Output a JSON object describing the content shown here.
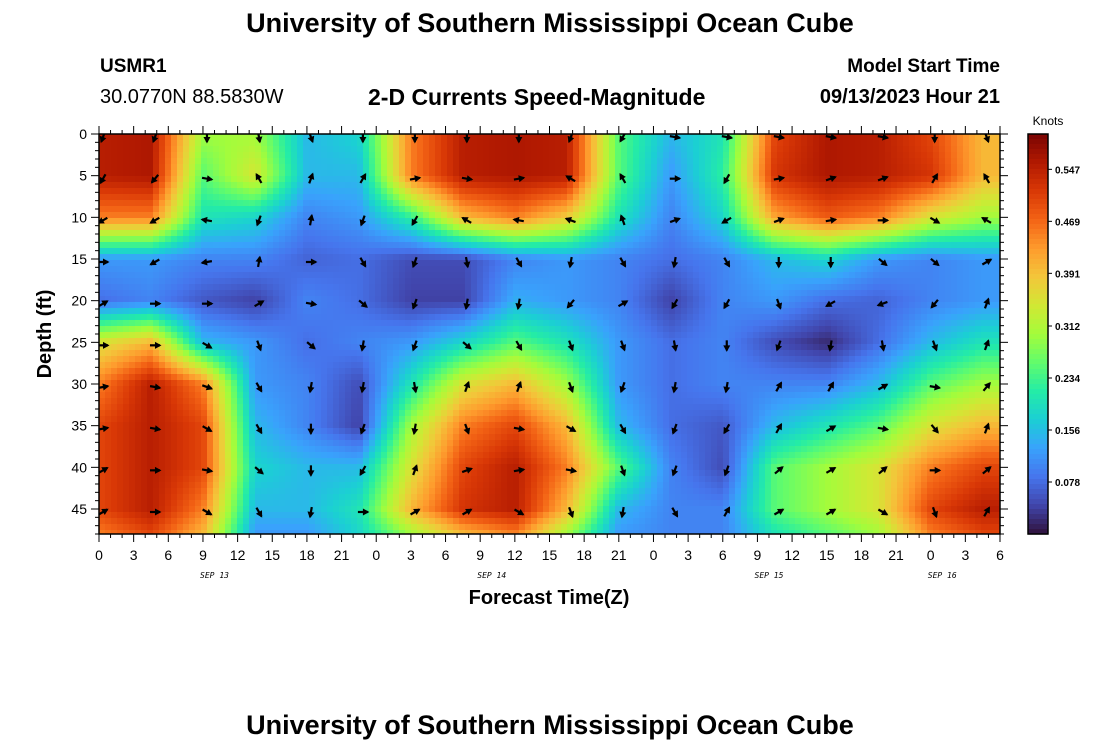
{
  "header": {
    "title": "University of Southern Mississippi Ocean Cube",
    "station": "USMR1",
    "coords": "30.0770N  88.5830W",
    "subtitle": "2-D Currents Speed-Magnitude",
    "model_start_label": "Model Start Time",
    "model_start_value": "09/13/2023 Hour 21"
  },
  "footer": {
    "title": "University of Southern Mississippi Ocean Cube"
  },
  "colors": {
    "scale": [
      "#30123b",
      "#4145ab",
      "#4675ed",
      "#39a2fc",
      "#1bcfd4",
      "#24eca6",
      "#61fc6c",
      "#a4fc3b",
      "#d1e834",
      "#f3c63a",
      "#fe9b2d",
      "#f36315",
      "#d93806",
      "#b11901",
      "#7a0403"
    ]
  },
  "chart_data": {
    "type": "heatmap",
    "title": "2-D Currents Speed-Magnitude",
    "xlabel": "Forecast Time(Z)",
    "ylabel": "Depth (ft)",
    "x_tick_labels": [
      "0",
      "3",
      "6",
      "9",
      "12",
      "15",
      "18",
      "21",
      "0",
      "3",
      "6",
      "9",
      "12",
      "15",
      "18",
      "21",
      "0",
      "3",
      "6",
      "9",
      "12",
      "15",
      "18",
      "21",
      "0",
      "3",
      "6"
    ],
    "x_hours": [
      0,
      3,
      6,
      9,
      12,
      15,
      18,
      21,
      24,
      27,
      30,
      33,
      36,
      39,
      42,
      45,
      48,
      51,
      54,
      57,
      60,
      63,
      66,
      69,
      72,
      75,
      78
    ],
    "xlim": [
      0,
      78
    ],
    "date_labels": [
      {
        "text": "SEP 13",
        "hour": 10
      },
      {
        "text": "SEP 14",
        "hour": 34
      },
      {
        "text": "SEP 15",
        "hour": 58
      },
      {
        "text": "SEP 16",
        "hour": 73
      }
    ],
    "y_ticks": [
      0,
      5,
      10,
      15,
      20,
      25,
      30,
      35,
      40,
      45
    ],
    "ylim": [
      0,
      48
    ],
    "colorbar": {
      "unit": "Knots",
      "tick_labels": [
        "0.547",
        "0.469",
        "0.391",
        "0.312",
        "0.234",
        "0.156",
        "0.078"
      ],
      "tick_values": [
        0.547,
        0.469,
        0.391,
        0.312,
        0.234,
        0.156,
        0.078
      ],
      "min": 0.0,
      "max": 0.6
    },
    "grid_hours": [
      0,
      4.5,
      9,
      13.5,
      18,
      22.5,
      27,
      31.5,
      36,
      40.5,
      45,
      49.5,
      54,
      58.5,
      63,
      67.5,
      72,
      76.5
    ],
    "grid_depths": [
      0,
      5,
      10,
      15,
      20,
      25,
      30,
      35,
      40,
      45,
      48
    ],
    "speed": [
      [
        0.55,
        0.56,
        0.3,
        0.3,
        0.15,
        0.18,
        0.45,
        0.55,
        0.56,
        0.55,
        0.25,
        0.15,
        0.2,
        0.5,
        0.56,
        0.55,
        0.5,
        0.4
      ],
      [
        0.55,
        0.56,
        0.25,
        0.35,
        0.15,
        0.15,
        0.45,
        0.55,
        0.56,
        0.55,
        0.25,
        0.12,
        0.22,
        0.52,
        0.56,
        0.55,
        0.52,
        0.4
      ],
      [
        0.45,
        0.45,
        0.2,
        0.18,
        0.1,
        0.12,
        0.22,
        0.4,
        0.45,
        0.38,
        0.2,
        0.1,
        0.18,
        0.42,
        0.48,
        0.45,
        0.35,
        0.3
      ],
      [
        0.12,
        0.12,
        0.1,
        0.1,
        0.07,
        0.08,
        0.05,
        0.05,
        0.1,
        0.12,
        0.1,
        0.08,
        0.1,
        0.15,
        0.18,
        0.12,
        0.1,
        0.12
      ],
      [
        0.08,
        0.1,
        0.06,
        0.04,
        0.1,
        0.08,
        0.04,
        0.04,
        0.14,
        0.12,
        0.1,
        0.04,
        0.1,
        0.12,
        0.08,
        0.07,
        0.1,
        0.12
      ],
      [
        0.35,
        0.4,
        0.15,
        0.12,
        0.08,
        0.1,
        0.12,
        0.18,
        0.25,
        0.2,
        0.12,
        0.08,
        0.1,
        0.05,
        0.02,
        0.08,
        0.15,
        0.2
      ],
      [
        0.45,
        0.55,
        0.45,
        0.12,
        0.1,
        0.05,
        0.2,
        0.35,
        0.4,
        0.3,
        0.12,
        0.08,
        0.1,
        0.1,
        0.1,
        0.15,
        0.25,
        0.3
      ],
      [
        0.5,
        0.55,
        0.5,
        0.15,
        0.1,
        0.04,
        0.3,
        0.45,
        0.5,
        0.4,
        0.15,
        0.08,
        0.06,
        0.15,
        0.2,
        0.25,
        0.35,
        0.4
      ],
      [
        0.5,
        0.55,
        0.5,
        0.18,
        0.15,
        0.15,
        0.35,
        0.5,
        0.55,
        0.45,
        0.25,
        0.1,
        0.05,
        0.25,
        0.3,
        0.35,
        0.45,
        0.5
      ],
      [
        0.5,
        0.55,
        0.45,
        0.15,
        0.15,
        0.2,
        0.4,
        0.52,
        0.55,
        0.4,
        0.15,
        0.1,
        0.1,
        0.25,
        0.3,
        0.35,
        0.5,
        0.55
      ],
      [
        0.45,
        0.5,
        0.4,
        0.12,
        0.12,
        0.18,
        0.3,
        0.4,
        0.45,
        0.3,
        0.12,
        0.1,
        0.1,
        0.2,
        0.25,
        0.3,
        0.45,
        0.5
      ]
    ],
    "vector_hours": [
      0,
      4.5,
      9,
      13.5,
      18,
      22.5,
      27,
      31.5,
      36,
      40.5,
      45,
      49.5,
      54,
      58.5,
      63,
      67.5,
      72,
      76.5
    ],
    "vector_depths": [
      0,
      5,
      10,
      15,
      20,
      25,
      30,
      35,
      40,
      45
    ],
    "vector_dir_deg": [
      [
        200,
        200,
        180,
        170,
        160,
        180,
        180,
        180,
        180,
        200,
        210,
        100,
        100,
        100,
        100,
        100,
        180,
        160
      ],
      [
        210,
        220,
        100,
        330,
        20,
        30,
        80,
        100,
        80,
        300,
        330,
        90,
        210,
        80,
        70,
        70,
        30,
        330
      ],
      [
        240,
        240,
        280,
        200,
        10,
        200,
        210,
        300,
        280,
        290,
        340,
        70,
        240,
        70,
        80,
        90,
        120,
        300
      ],
      [
        90,
        240,
        260,
        10,
        90,
        150,
        200,
        170,
        150,
        190,
        150,
        190,
        150,
        180,
        180,
        130,
        130,
        60
      ],
      [
        60,
        90,
        90,
        60,
        100,
        130,
        200,
        190,
        190,
        220,
        60,
        210,
        210,
        160,
        240,
        250,
        220,
        20
      ],
      [
        90,
        90,
        120,
        160,
        130,
        190,
        200,
        130,
        150,
        160,
        160,
        170,
        180,
        200,
        190,
        170,
        160,
        20
      ],
      [
        80,
        100,
        110,
        150,
        190,
        190,
        170,
        20,
        20,
        160,
        200,
        190,
        190,
        30,
        30,
        60,
        100,
        40
      ],
      [
        80,
        100,
        120,
        150,
        180,
        200,
        190,
        160,
        100,
        120,
        150,
        200,
        210,
        30,
        60,
        100,
        140,
        20
      ],
      [
        60,
        90,
        100,
        130,
        180,
        210,
        20,
        70,
        80,
        100,
        160,
        200,
        200,
        50,
        60,
        50,
        90,
        50
      ],
      [
        60,
        90,
        120,
        150,
        190,
        90,
        60,
        60,
        120,
        160,
        190,
        150,
        30,
        60,
        60,
        120,
        160,
        30
      ]
    ]
  }
}
